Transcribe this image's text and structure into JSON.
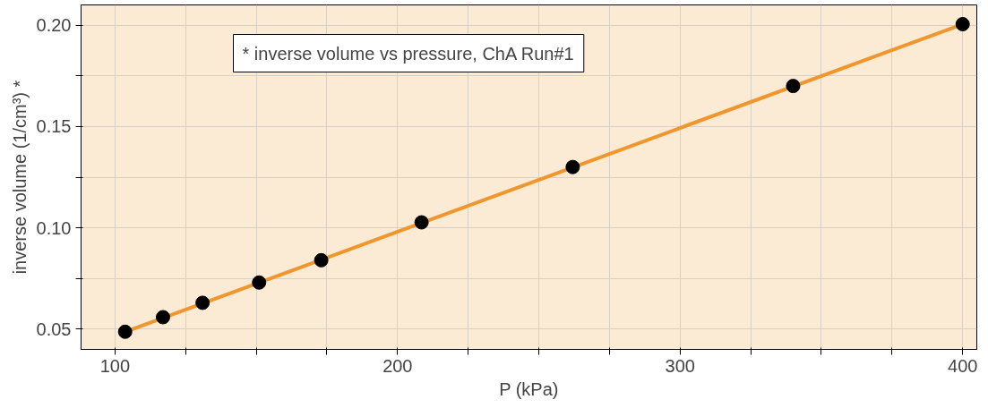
{
  "chart_data": {
    "type": "scatter",
    "xlabel": "P (kPa)",
    "ylabel": "inverse volume (1/cm³) *",
    "annotations": [
      "* inverse volume vs pressure, ChA Run#1"
    ],
    "x": [
      103.6,
      117,
      131,
      151,
      173,
      208.5,
      262,
      340,
      400
    ],
    "series": [
      {
        "marker": "circle",
        "color": "#000000",
        "values": [
          0.0487,
          0.0559,
          0.063,
          0.073,
          0.084,
          0.1027,
          0.13,
          0.17,
          0.2005
        ]
      },
      {
        "type": "line",
        "color": "#f0962e",
        "x": [
          103.6,
          400
        ],
        "values": [
          0.0487,
          0.2005
        ]
      }
    ],
    "grid": true,
    "xlim": [
      88,
      405
    ],
    "ylim": [
      0.04,
      0.21
    ],
    "xticks": [
      100,
      {
        "value": 125,
        "label": null
      },
      {
        "value": 150,
        "label": null
      },
      {
        "value": 175,
        "label": null
      },
      200,
      {
        "value": 225,
        "label": null
      },
      {
        "value": 250,
        "label": null
      },
      {
        "value": 275,
        "label": null
      },
      300,
      {
        "value": 325,
        "label": null
      },
      {
        "value": 350,
        "label": null
      },
      {
        "value": 375,
        "label": null
      },
      400
    ],
    "yticks": [
      {
        "value": 0.05,
        "label": "0.05"
      },
      {
        "value": 0.075,
        "label": null
      },
      {
        "value": 0.1,
        "label": "0.10"
      },
      {
        "value": 0.125,
        "label": null
      },
      {
        "value": 0.15,
        "label": "0.15"
      },
      {
        "value": 0.175,
        "label": null
      },
      {
        "value": 0.2,
        "label": "0.20"
      }
    ]
  }
}
